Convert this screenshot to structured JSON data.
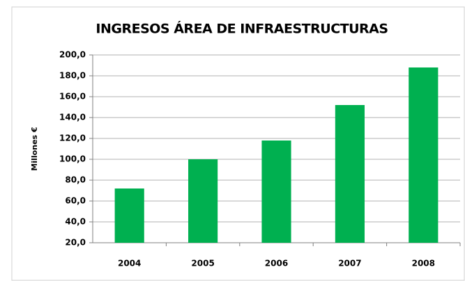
{
  "chart_data": {
    "type": "bar",
    "title": "INGRESOS ÁREA DE INFRAESTRUCTURAS",
    "y_label": "Millones €",
    "categories": [
      "2004",
      "2005",
      "2006",
      "2007",
      "2008"
    ],
    "values": [
      72,
      100,
      118,
      152,
      188
    ],
    "color": "#00b050",
    "ylim": [
      20,
      200
    ],
    "yticks": [
      {
        "value": 20,
        "label": "20,0"
      },
      {
        "value": 40,
        "label": "40,0"
      },
      {
        "value": 60,
        "label": "60,0"
      },
      {
        "value": 80,
        "label": "80,0"
      },
      {
        "value": 100,
        "label": "100,0"
      },
      {
        "value": 120,
        "label": "120,0"
      },
      {
        "value": 140,
        "label": "140,0"
      },
      {
        "value": 160,
        "label": "160,0"
      },
      {
        "value": 180,
        "label": "180,0"
      },
      {
        "value": 200,
        "label": "200,0"
      }
    ],
    "grid": true
  }
}
